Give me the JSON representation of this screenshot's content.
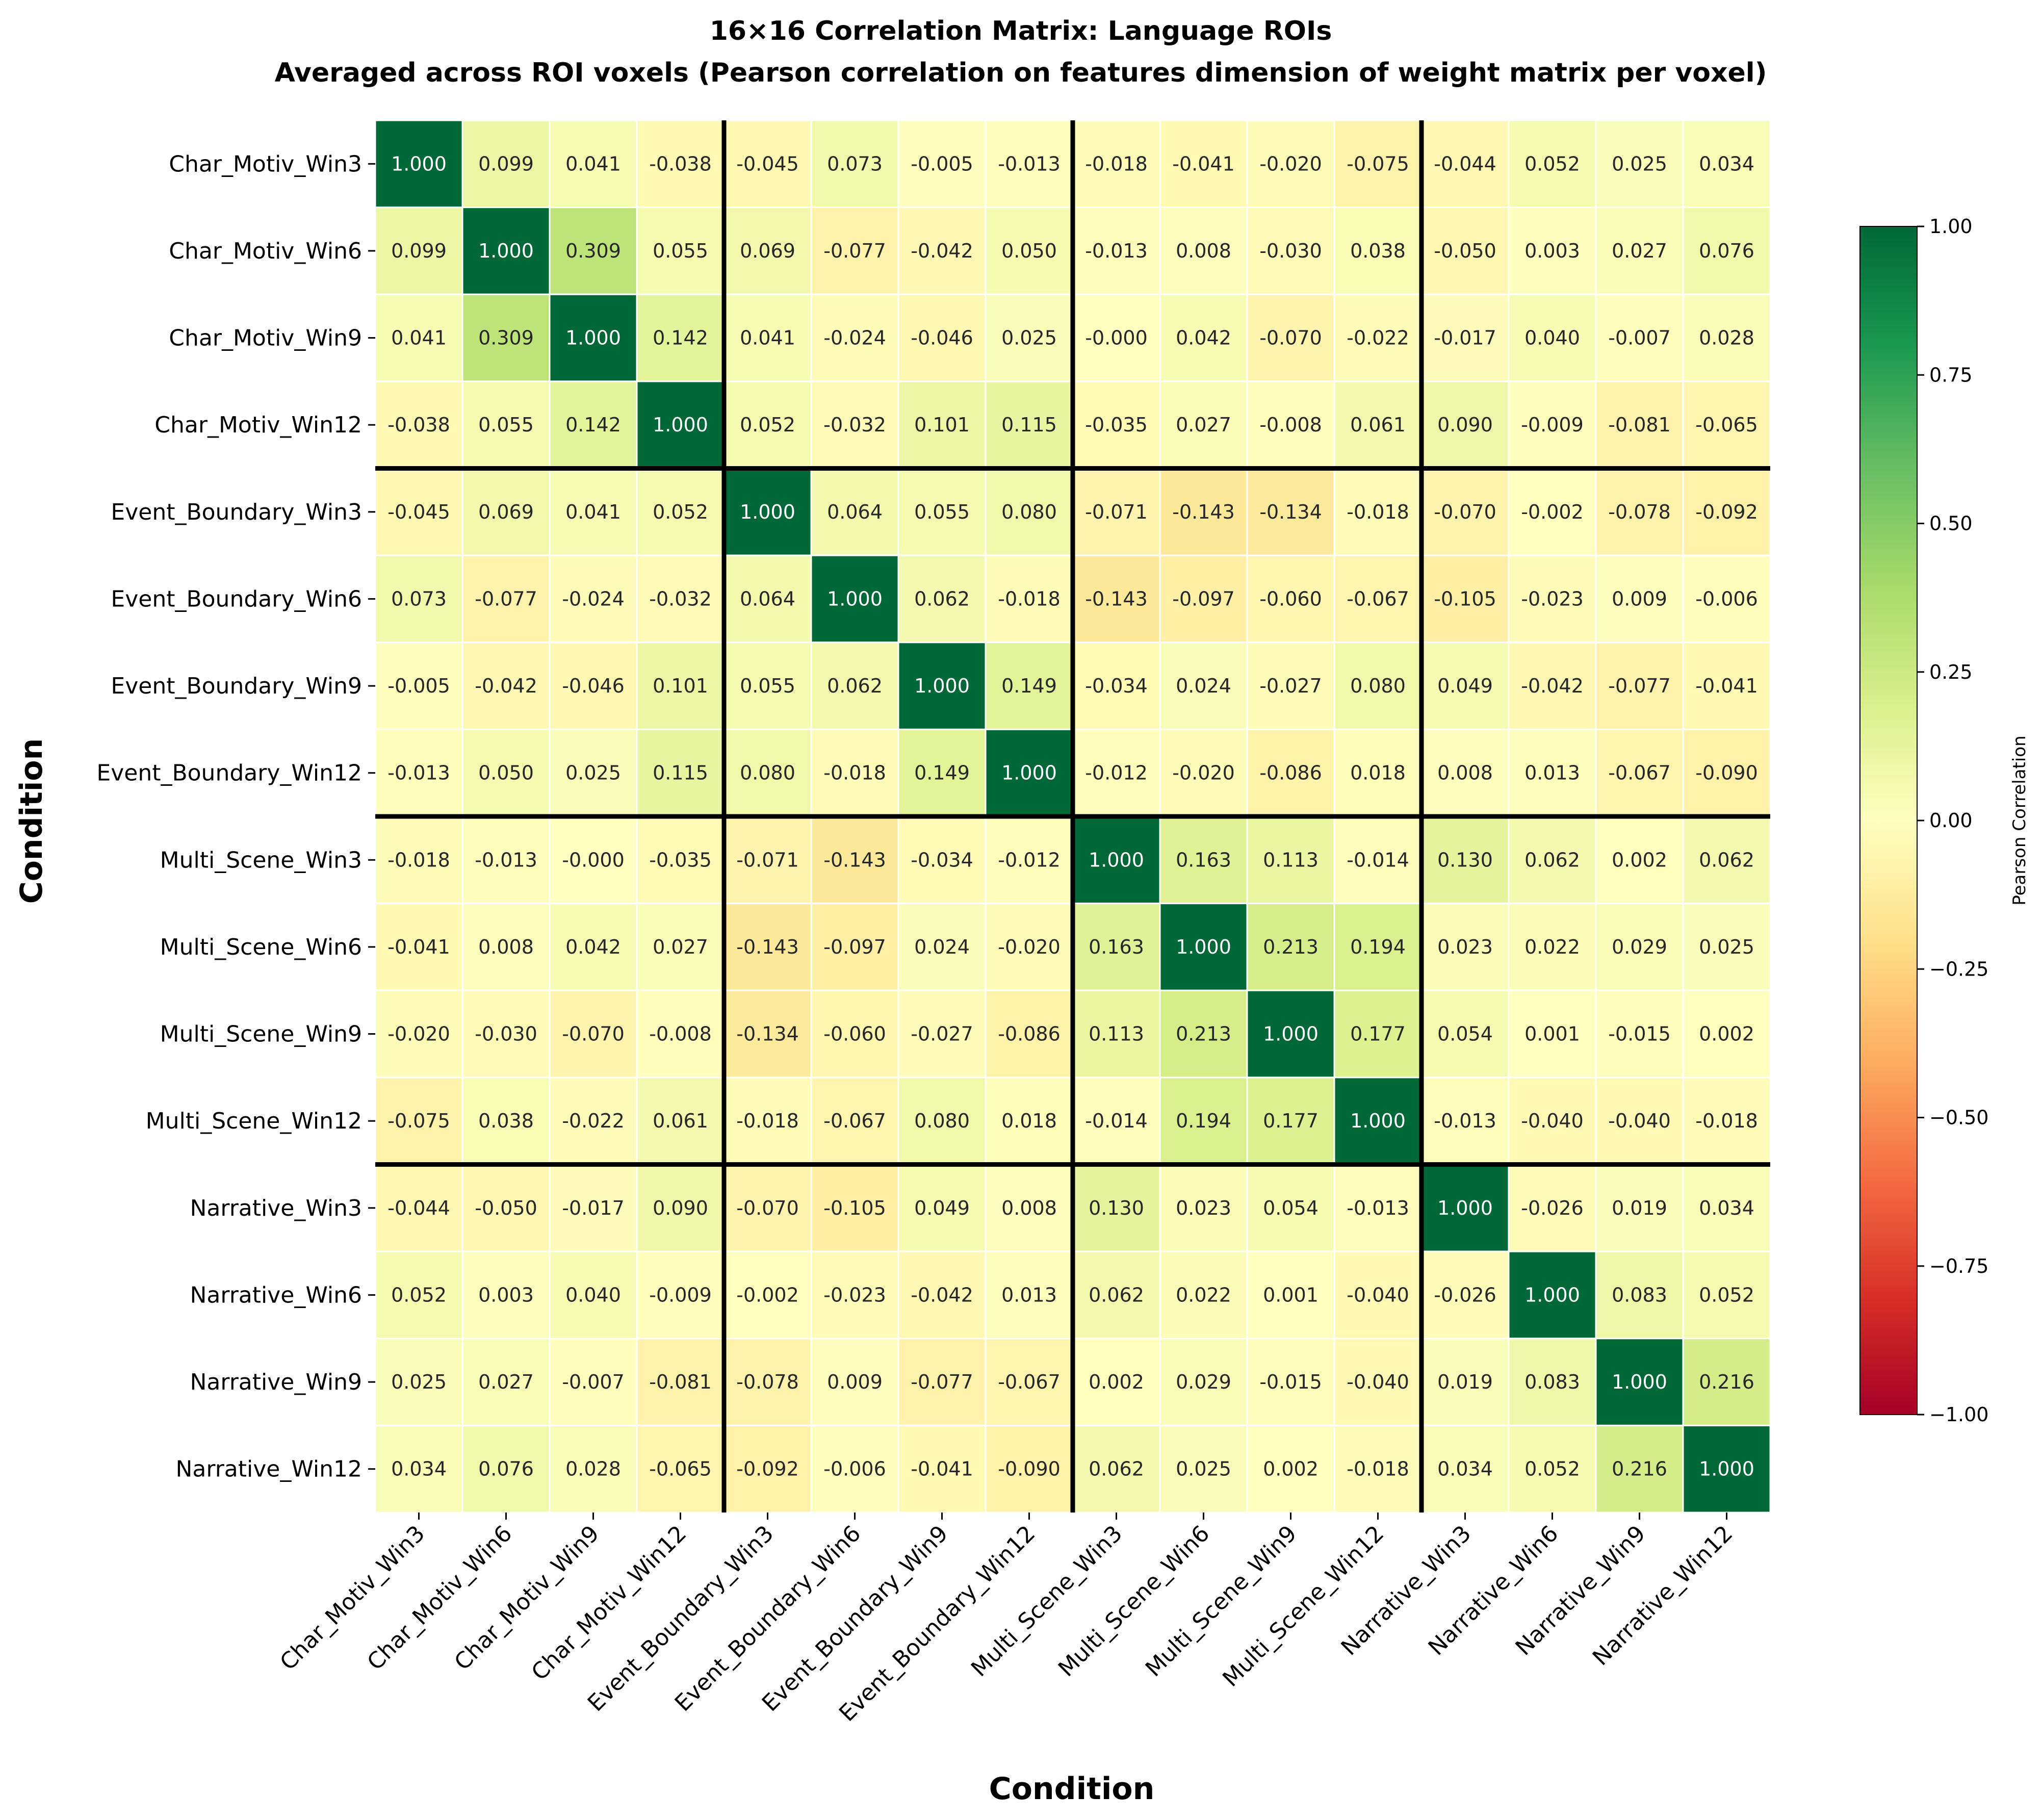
{
  "chart_data": {
    "type": "heatmap",
    "title": "16×16 Correlation Matrix: Language ROIs",
    "subtitle": "Averaged across ROI voxels (Pearson correlation on features dimension of weight matrix per voxel)",
    "xlabel": "Condition",
    "ylabel": "Condition",
    "labels": [
      "Char_Motiv_Win3",
      "Char_Motiv_Win6",
      "Char_Motiv_Win9",
      "Char_Motiv_Win12",
      "Event_Boundary_Win3",
      "Event_Boundary_Win6",
      "Event_Boundary_Win9",
      "Event_Boundary_Win12",
      "Multi_Scene_Win3",
      "Multi_Scene_Win6",
      "Multi_Scene_Win9",
      "Multi_Scene_Win12",
      "Narrative_Win3",
      "Narrative_Win6",
      "Narrative_Win9",
      "Narrative_Win12"
    ],
    "matrix": [
      [
        "1.000",
        "0.099",
        "0.041",
        "-0.038",
        "-0.045",
        "0.073",
        "-0.005",
        "-0.013",
        "-0.018",
        "-0.041",
        "-0.020",
        "-0.075",
        "-0.044",
        "0.052",
        "0.025",
        "0.034"
      ],
      [
        "0.099",
        "1.000",
        "0.309",
        "0.055",
        "0.069",
        "-0.077",
        "-0.042",
        "0.050",
        "-0.013",
        "0.008",
        "-0.030",
        "0.038",
        "-0.050",
        "0.003",
        "0.027",
        "0.076"
      ],
      [
        "0.041",
        "0.309",
        "1.000",
        "0.142",
        "0.041",
        "-0.024",
        "-0.046",
        "0.025",
        "-0.000",
        "0.042",
        "-0.070",
        "-0.022",
        "-0.017",
        "0.040",
        "-0.007",
        "0.028"
      ],
      [
        "-0.038",
        "0.055",
        "0.142",
        "1.000",
        "0.052",
        "-0.032",
        "0.101",
        "0.115",
        "-0.035",
        "0.027",
        "-0.008",
        "0.061",
        "0.090",
        "-0.009",
        "-0.081",
        "-0.065"
      ],
      [
        "-0.045",
        "0.069",
        "0.041",
        "0.052",
        "1.000",
        "0.064",
        "0.055",
        "0.080",
        "-0.071",
        "-0.143",
        "-0.134",
        "-0.018",
        "-0.070",
        "-0.002",
        "-0.078",
        "-0.092"
      ],
      [
        "0.073",
        "-0.077",
        "-0.024",
        "-0.032",
        "0.064",
        "1.000",
        "0.062",
        "-0.018",
        "-0.143",
        "-0.097",
        "-0.060",
        "-0.067",
        "-0.105",
        "-0.023",
        "0.009",
        "-0.006"
      ],
      [
        "-0.005",
        "-0.042",
        "-0.046",
        "0.101",
        "0.055",
        "0.062",
        "1.000",
        "0.149",
        "-0.034",
        "0.024",
        "-0.027",
        "0.080",
        "0.049",
        "-0.042",
        "-0.077",
        "-0.041"
      ],
      [
        "-0.013",
        "0.050",
        "0.025",
        "0.115",
        "0.080",
        "-0.018",
        "0.149",
        "1.000",
        "-0.012",
        "-0.020",
        "-0.086",
        "0.018",
        "0.008",
        "0.013",
        "-0.067",
        "-0.090"
      ],
      [
        "-0.018",
        "-0.013",
        "-0.000",
        "-0.035",
        "-0.071",
        "-0.143",
        "-0.034",
        "-0.012",
        "1.000",
        "0.163",
        "0.113",
        "-0.014",
        "0.130",
        "0.062",
        "0.002",
        "0.062"
      ],
      [
        "-0.041",
        "0.008",
        "0.042",
        "0.027",
        "-0.143",
        "-0.097",
        "0.024",
        "-0.020",
        "0.163",
        "1.000",
        "0.213",
        "0.194",
        "0.023",
        "0.022",
        "0.029",
        "0.025"
      ],
      [
        "-0.020",
        "-0.030",
        "-0.070",
        "-0.008",
        "-0.134",
        "-0.060",
        "-0.027",
        "-0.086",
        "0.113",
        "0.213",
        "1.000",
        "0.177",
        "0.054",
        "0.001",
        "-0.015",
        "0.002"
      ],
      [
        "-0.075",
        "0.038",
        "-0.022",
        "0.061",
        "-0.018",
        "-0.067",
        "0.080",
        "0.018",
        "-0.014",
        "0.194",
        "0.177",
        "1.000",
        "-0.013",
        "-0.040",
        "-0.040",
        "-0.018"
      ],
      [
        "-0.044",
        "-0.050",
        "-0.017",
        "0.090",
        "-0.070",
        "-0.105",
        "0.049",
        "0.008",
        "0.130",
        "0.023",
        "0.054",
        "-0.013",
        "1.000",
        "-0.026",
        "0.019",
        "0.034"
      ],
      [
        "0.052",
        "0.003",
        "0.040",
        "-0.009",
        "-0.002",
        "-0.023",
        "-0.042",
        "0.013",
        "0.062",
        "0.022",
        "0.001",
        "-0.040",
        "-0.026",
        "1.000",
        "0.083",
        "0.052"
      ],
      [
        "0.025",
        "0.027",
        "-0.007",
        "-0.081",
        "-0.078",
        "0.009",
        "-0.077",
        "-0.067",
        "0.002",
        "0.029",
        "-0.015",
        "-0.040",
        "0.019",
        "0.083",
        "1.000",
        "0.216"
      ],
      [
        "0.034",
        "0.076",
        "0.028",
        "-0.065",
        "-0.092",
        "-0.006",
        "-0.041",
        "-0.090",
        "0.062",
        "0.025",
        "0.002",
        "-0.018",
        "0.034",
        "0.052",
        "0.216",
        "1.000"
      ]
    ],
    "group_size": 4,
    "colormap": "RdYlGn",
    "vmin": -1.0,
    "vmax": 1.0,
    "colorbar": {
      "label": "Pearson Correlation",
      "ticks": [
        1.0,
        0.75,
        0.5,
        0.25,
        0.0,
        -0.25,
        -0.5,
        -0.75,
        -1.0
      ],
      "tick_labels": [
        "1.00",
        "0.75",
        "0.50",
        "0.25",
        "0.00",
        "−0.25",
        "−0.50",
        "−0.75",
        "−1.00"
      ],
      "placement": "right"
    }
  }
}
